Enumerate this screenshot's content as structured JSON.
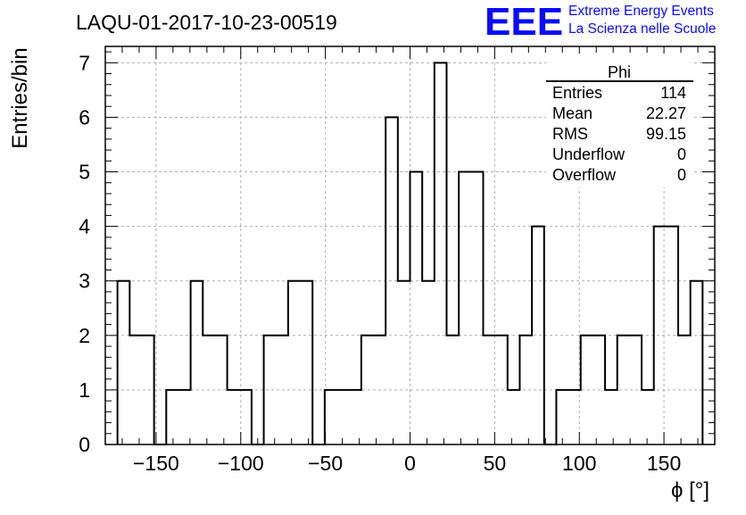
{
  "title": "LAQU-01-2017-10-23-00519",
  "brand": {
    "logo": "EEE",
    "line1": "Extreme Energy Events",
    "line2": "La Scienza nelle Scuole",
    "color": "#0a0aff"
  },
  "stats": {
    "name": "Phi",
    "rows": [
      {
        "label": "Entries",
        "value": "114"
      },
      {
        "label": "Mean",
        "value": "22.27"
      },
      {
        "label": "RMS",
        "value": "99.15"
      },
      {
        "label": "Underflow",
        "value": "0"
      },
      {
        "label": "Overflow",
        "value": "0"
      }
    ]
  },
  "chart_data": {
    "type": "bar",
    "style": "histogram-step",
    "title": "LAQU-01-2017-10-23-00519",
    "xlabel": "ϕ [°]",
    "ylabel": "Entries/bin",
    "xlim": [
      -180,
      180
    ],
    "ylim": [
      0,
      7.3
    ],
    "grid": true,
    "bin_width": 7.2,
    "bin_edges_start": -172.8,
    "values": [
      3,
      2,
      2,
      0,
      1,
      1,
      3,
      2,
      2,
      1,
      1,
      0,
      2,
      2,
      3,
      3,
      0,
      1,
      1,
      1,
      2,
      2,
      6,
      3,
      5,
      3,
      7,
      2,
      5,
      5,
      2,
      2,
      1,
      2,
      4,
      0,
      1,
      1,
      2,
      2,
      1,
      2,
      2,
      1,
      4,
      4,
      2,
      3
    ],
    "xticks": [
      -150,
      -100,
      -50,
      0,
      50,
      100,
      150
    ],
    "xtick_labels": [
      "−150",
      "−100",
      "−50",
      "0",
      "50",
      "100",
      "150"
    ],
    "yticks": [
      0,
      1,
      2,
      3,
      4,
      5,
      6,
      7
    ],
    "ytick_labels": [
      "0",
      "1",
      "2",
      "3",
      "4",
      "5",
      "6",
      "7"
    ]
  }
}
